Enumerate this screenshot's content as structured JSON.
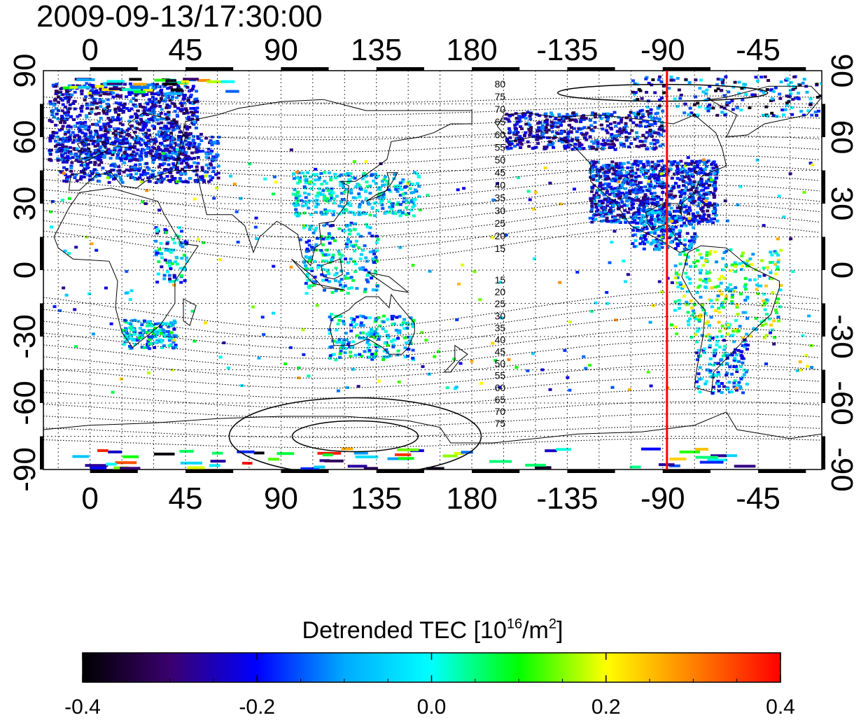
{
  "timestamp": "2009-09-13/17:30:00",
  "map": {
    "x_ticks": [
      {
        "lon": 0,
        "label": "0"
      },
      {
        "lon": 45,
        "label": "45"
      },
      {
        "lon": 90,
        "label": "90"
      },
      {
        "lon": 135,
        "label": "135"
      },
      {
        "lon": 180,
        "label": "180"
      },
      {
        "lon": 225,
        "label": "-135"
      },
      {
        "lon": 270,
        "label": "-90"
      },
      {
        "lon": 315,
        "label": "-45"
      }
    ],
    "y_ticks": [
      {
        "lat": 90,
        "label": "90"
      },
      {
        "lat": 60,
        "label": "60"
      },
      {
        "lat": 30,
        "label": "30"
      },
      {
        "lat": 0,
        "label": "0"
      },
      {
        "lat": -30,
        "label": "-30"
      },
      {
        "lat": -60,
        "label": "-60"
      },
      {
        "lat": -90,
        "label": "-90"
      }
    ],
    "lon_range": [
      -22,
      345
    ],
    "lat_range": [
      -90,
      90
    ],
    "grid": true,
    "meridian_marker": {
      "lon": 272,
      "color": "#ff0000"
    },
    "contour_labels_north": [
      "80",
      "75",
      "70",
      "65",
      "60",
      "55",
      "50",
      "45",
      "40",
      "35",
      "30",
      "25",
      "20",
      "15"
    ],
    "contour_labels_south": [
      "15",
      "20",
      "25",
      "30",
      "35",
      "40",
      "45",
      "50",
      "55",
      "60",
      "65",
      "70",
      "75"
    ],
    "contour_label_lon": 190
  },
  "colorbar": {
    "title_prefix": "Detrended TEC  [10",
    "title_sup1": "16",
    "title_mid": "/m",
    "title_sup2": "2",
    "title_suffix": "]",
    "min": -0.4,
    "max": 0.4,
    "tick_labels": [
      "-0.4",
      "-0.2",
      "0.0",
      "0.2",
      "0.4"
    ],
    "stops": [
      "#000000",
      "#3a006e",
      "#0000ff",
      "#00aaff",
      "#00ffff",
      "#00ff00",
      "#ffff00",
      "#ff8000",
      "#ff0000"
    ]
  },
  "colors": {
    "marker": "#ff0000",
    "coast": "#000000",
    "grid": "#000000"
  }
}
